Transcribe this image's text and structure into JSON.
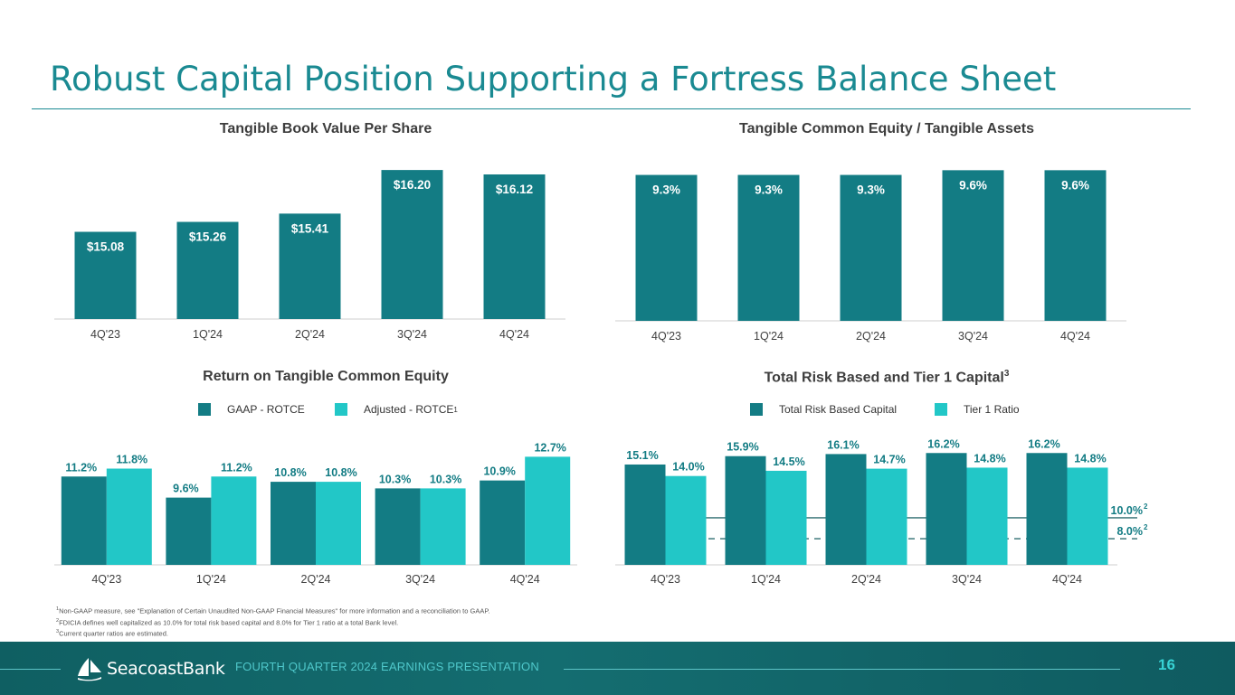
{
  "slide": {
    "title": "Robust Capital Position Supporting a Fortress Balance Sheet",
    "footer_brand": "SeacoastBank",
    "footer_text": "FOURTH QUARTER 2024 EARNINGS PRESENTATION",
    "page_number": "16"
  },
  "colors": {
    "dark": "#137c84",
    "light": "#22c7c7",
    "title": "#1a8a92"
  },
  "panels": {
    "tbv": {
      "title": "Tangible Book Value Per Share"
    },
    "tce": {
      "title": "Tangible Common Equity / Tangible Assets"
    },
    "rotce": {
      "title": "Return on Tangible Common Equity",
      "legend": [
        "GAAP - ROTCE",
        "Adjusted - ROTCE"
      ],
      "legend_sup": "1"
    },
    "capital": {
      "title": "Total Risk Based and Tier 1 Capital",
      "title_sup": "3",
      "legend": [
        "Total Risk Based Capital",
        "Tier 1 Ratio"
      ]
    }
  },
  "footnotes": [
    {
      "sup": "1",
      "text": "Non-GAAP measure, see \"Explanation of Certain Unaudited Non-GAAP Financial Measures\" for more information and a reconciliation to GAAP."
    },
    {
      "sup": "2",
      "text": "FDICIA defines well capitalized as 10.0% for total risk based capital and 8.0% for Tier 1 ratio at a total Bank level."
    },
    {
      "sup": "3",
      "text": "Current quarter ratios are estimated."
    }
  ],
  "chart_data": [
    {
      "type": "bar",
      "title": "Tangible Book Value Per Share",
      "categories": [
        "4Q'23",
        "1Q'24",
        "2Q'24",
        "3Q'24",
        "4Q'24"
      ],
      "values": [
        15.08,
        15.26,
        15.41,
        16.2,
        16.12
      ],
      "labels": [
        "$15.08",
        "$15.26",
        "$15.41",
        "$16.20",
        "$16.12"
      ],
      "ylim": [
        13.5,
        16.3
      ]
    },
    {
      "type": "bar",
      "title": "Tangible Common Equity / Tangible Assets",
      "categories": [
        "4Q'23",
        "1Q'24",
        "2Q'24",
        "3Q'24",
        "4Q'24"
      ],
      "values": [
        9.3,
        9.3,
        9.3,
        9.6,
        9.6
      ],
      "labels": [
        "9.3%",
        "9.3%",
        "9.3%",
        "9.6%",
        "9.6%"
      ],
      "ylim": [
        0,
        9.85
      ]
    },
    {
      "type": "bar",
      "title": "Return on Tangible Common Equity",
      "categories": [
        "4Q'23",
        "1Q'24",
        "2Q'24",
        "3Q'24",
        "4Q'24"
      ],
      "series": [
        {
          "name": "GAAP - ROTCE",
          "values": [
            11.2,
            9.6,
            10.8,
            10.3,
            10.9
          ],
          "labels": [
            "11.2%",
            "9.6%",
            "10.8%",
            "10.3%",
            "10.9%"
          ]
        },
        {
          "name": "Adjusted - ROTCE",
          "values": [
            11.8,
            11.2,
            10.8,
            10.3,
            12.7
          ],
          "labels": [
            "11.8%",
            "11.2%",
            "10.8%",
            "10.3%",
            "12.7%"
          ]
        }
      ],
      "ylim": [
        4.5,
        13.0
      ]
    },
    {
      "type": "bar",
      "title": "Total Risk Based and Tier 1 Capital",
      "categories": [
        "4Q'23",
        "1Q'24",
        "2Q'24",
        "3Q'24",
        "4Q'24"
      ],
      "series": [
        {
          "name": "Total Risk Based Capital",
          "values": [
            15.1,
            15.9,
            16.1,
            16.2,
            16.2
          ],
          "labels": [
            "15.1%",
            "15.9%",
            "16.1%",
            "16.2%",
            "16.2%"
          ]
        },
        {
          "name": "Tier 1 Ratio",
          "values": [
            14.0,
            14.5,
            14.7,
            14.8,
            14.8
          ],
          "labels": [
            "14.0%",
            "14.5%",
            "14.7%",
            "14.8%",
            "14.8%"
          ]
        }
      ],
      "reference_lines": [
        {
          "value": 10.0,
          "label": "10.0%",
          "sup": "2",
          "style": "solid"
        },
        {
          "value": 8.0,
          "label": "8.0%",
          "sup": "2",
          "style": "dashed"
        }
      ],
      "ylim": [
        5.5,
        17.0
      ]
    }
  ]
}
